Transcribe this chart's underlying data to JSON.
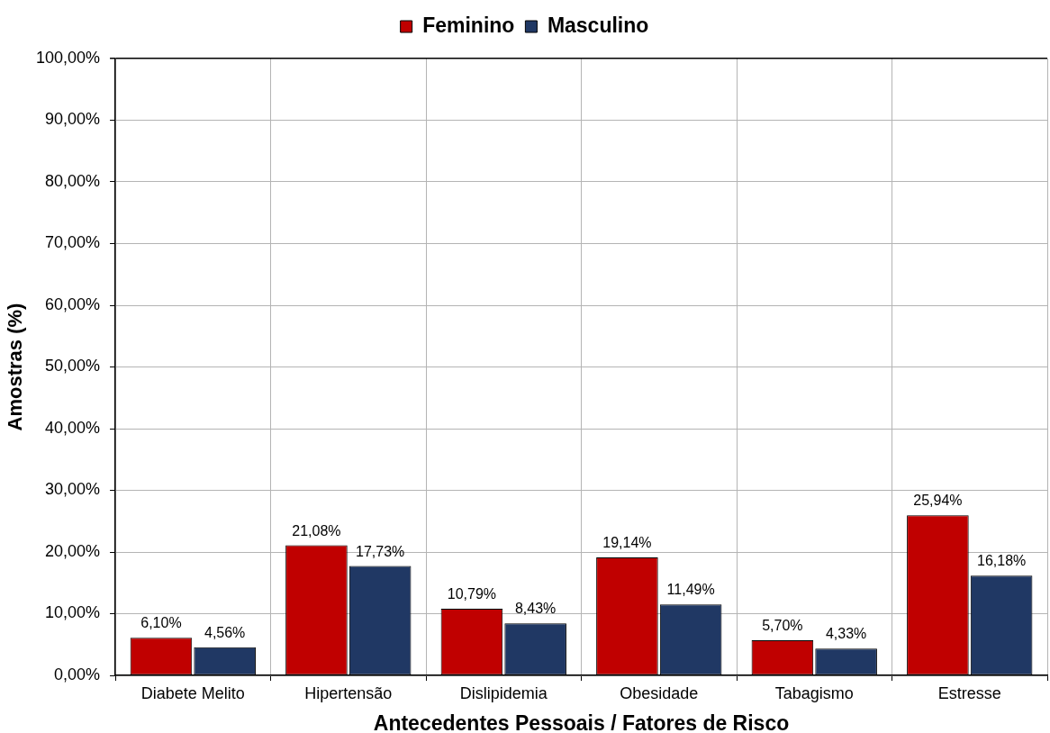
{
  "chart_data": {
    "type": "bar",
    "legend": "top",
    "grid": true,
    "categories": [
      "Diabete Melito",
      "Hipertensão",
      "Dislipidemia",
      "Obesidade",
      "Tabagismo",
      "Estresse"
    ],
    "series": [
      {
        "name": "Feminino",
        "color": "#c00000",
        "values": [
          6.1,
          21.08,
          10.79,
          19.14,
          5.7,
          25.94
        ],
        "value_labels": [
          "6,10%",
          "21,08%",
          "10,79%",
          "19,14%",
          "5,70%",
          "25,94%"
        ]
      },
      {
        "name": "Masculino",
        "color": "#203864",
        "values": [
          4.56,
          17.73,
          8.43,
          11.49,
          4.33,
          16.18
        ],
        "value_labels": [
          "4,56%",
          "17,73%",
          "8,43%",
          "11,49%",
          "4,33%",
          "16,18%"
        ]
      }
    ],
    "xlabel": "Antecedentes Pessoais / Fatores de Risco",
    "ylabel": "Amostras (%)",
    "ylim": [
      0,
      100
    ],
    "yticks": [
      {
        "value": 0,
        "label": "0,00%"
      },
      {
        "value": 10,
        "label": "10,00%"
      },
      {
        "value": 20,
        "label": "20,00%"
      },
      {
        "value": 30,
        "label": "30,00%"
      },
      {
        "value": 40,
        "label": "40,00%"
      },
      {
        "value": 50,
        "label": "50,00%"
      },
      {
        "value": 60,
        "label": "60,00%"
      },
      {
        "value": 70,
        "label": "70,00%"
      },
      {
        "value": 80,
        "label": "80,00%"
      },
      {
        "value": 90,
        "label": "90,00%"
      },
      {
        "value": 100,
        "label": "100,00%"
      }
    ]
  }
}
